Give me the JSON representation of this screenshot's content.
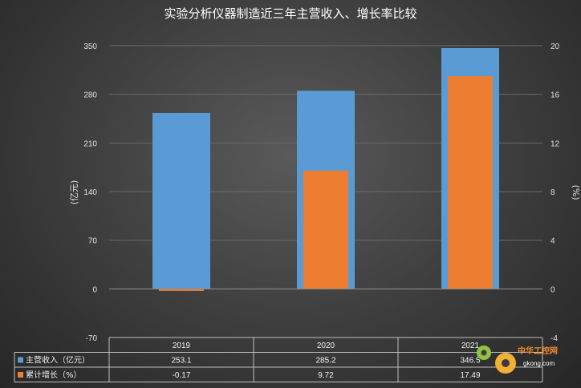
{
  "chart_data": {
    "type": "bar",
    "title": "实验分析仪器制造近三年主营收入、增长率比较",
    "categories": [
      "2019",
      "2020",
      "2021"
    ],
    "series": [
      {
        "name": "主营收入（亿元）",
        "axis": "left",
        "color": "#5b9bd5",
        "values": [
          253.1,
          285.2,
          346.5
        ],
        "labels": [
          "253.1",
          "285.2",
          "346.5"
        ]
      },
      {
        "name": "累计增长（%）",
        "axis": "right",
        "color": "#ed7d31",
        "values": [
          -0.17,
          9.72,
          17.49
        ],
        "labels": [
          "-0.17",
          "9.72",
          "17.49"
        ]
      }
    ],
    "ylabel_left": "(亿元)",
    "ylabel_right": "(%)",
    "ylim_left": [
      -70,
      350
    ],
    "yticks_left": [
      "-70",
      "0",
      "70",
      "140",
      "210",
      "280",
      "350"
    ],
    "ylim_right": [
      -4,
      20
    ],
    "yticks_right": [
      "-4",
      "0",
      "4",
      "8",
      "12",
      "16",
      "20"
    ],
    "legend": "data-table"
  },
  "watermark": {
    "text": "中华工控网",
    "sub": "gkong.com"
  }
}
